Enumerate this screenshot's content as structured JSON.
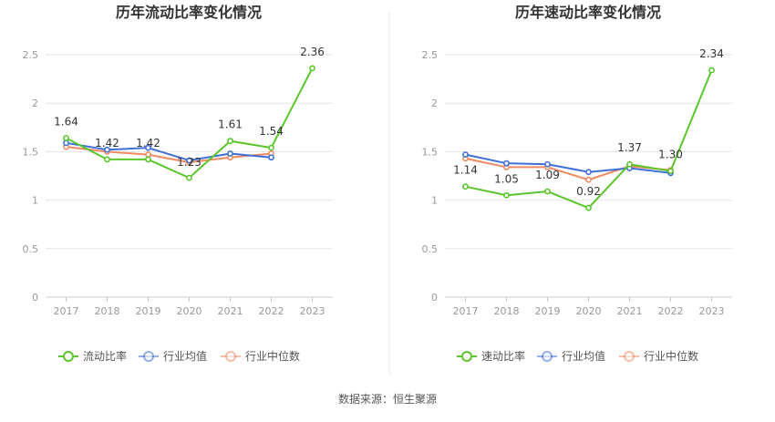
{
  "source_note": "数据来源：恒生聚源",
  "colors": {
    "company": "#5ac62b",
    "industry_avg": "#3f6fd8",
    "industry_median": "#f08a64",
    "axis": "#999999",
    "grid": "#e6e6e6",
    "divider": "#e8e8e8"
  },
  "chart_data": [
    {
      "type": "line",
      "title": "历年流动比率变化情况",
      "categories": [
        "2017",
        "2018",
        "2019",
        "2020",
        "2021",
        "2022",
        "2023"
      ],
      "ylim": [
        0,
        2.5
      ],
      "yticks": [
        "0",
        "0.5",
        "1",
        "1.5",
        "2",
        "2.5"
      ],
      "grid": true,
      "legend_position": "bottom",
      "series": [
        {
          "name": "流动比率",
          "values": [
            1.64,
            1.42,
            1.42,
            1.23,
            1.61,
            1.54,
            2.36
          ],
          "labels": [
            "1.64",
            "1.42",
            "1.42",
            "1.23",
            "1.61",
            "1.54",
            "2.36"
          ]
        },
        {
          "name": "行业均值",
          "values": [
            1.59,
            1.52,
            1.54,
            1.41,
            1.48,
            1.44,
            null
          ]
        },
        {
          "name": "行业中位数",
          "values": [
            1.55,
            1.5,
            1.47,
            1.39,
            1.44,
            1.48,
            null
          ]
        }
      ]
    },
    {
      "type": "line",
      "title": "历年速动比率变化情况",
      "categories": [
        "2017",
        "2018",
        "2019",
        "2020",
        "2021",
        "2022",
        "2023"
      ],
      "ylim": [
        0,
        2.5
      ],
      "yticks": [
        "0",
        "0.5",
        "1",
        "1.5",
        "2",
        "2.5"
      ],
      "grid": true,
      "legend_position": "bottom",
      "series": [
        {
          "name": "速动比率",
          "values": [
            1.14,
            1.05,
            1.09,
            0.92,
            1.37,
            1.3,
            2.34
          ],
          "labels": [
            "1.14",
            "1.05",
            "1.09",
            "0.92",
            "1.37",
            "1.30",
            "2.34"
          ]
        },
        {
          "name": "行业均值",
          "values": [
            1.47,
            1.38,
            1.37,
            1.29,
            1.33,
            1.28,
            null
          ]
        },
        {
          "name": "行业中位数",
          "values": [
            1.43,
            1.34,
            1.34,
            1.21,
            1.35,
            1.31,
            null
          ]
        }
      ]
    }
  ]
}
